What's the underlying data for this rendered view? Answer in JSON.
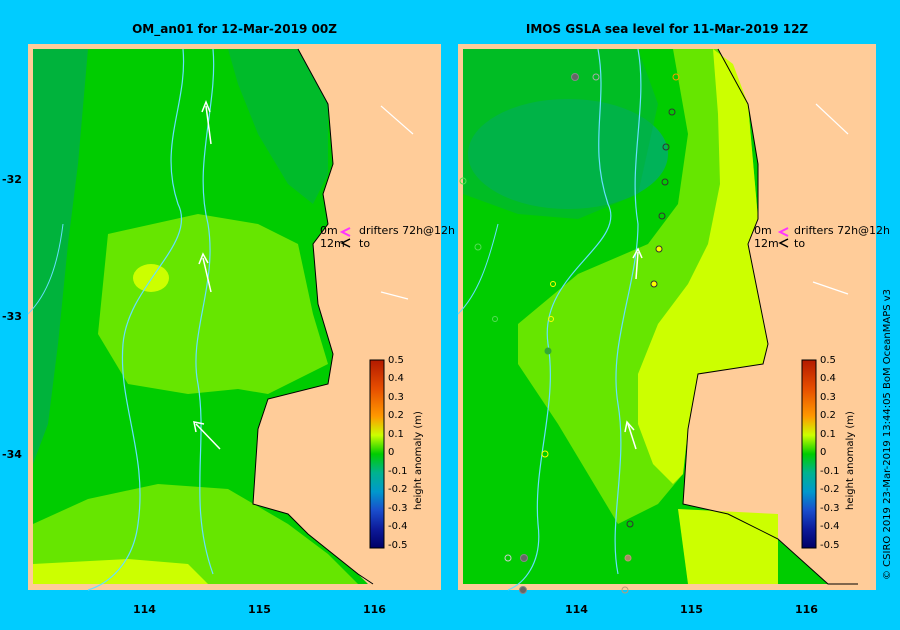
{
  "left_map": {
    "title": "OM_an01  for 12-Mar-2019 00Z",
    "drifters_label": "drifters 72h@12h",
    "depth_0": "0m",
    "depth_12": "12m",
    "to_label": "to"
  },
  "right_map": {
    "title": "IMOS GSLA sea level  for 11-Mar-2019 12Z",
    "drifters_label": "drifters 72h@12h",
    "depth_0": "0m",
    "depth_12": "12m",
    "to_label": "to"
  },
  "x_ticks": [
    "114",
    "115",
    "116"
  ],
  "y_ticks": [
    "-32",
    "-33",
    "-34"
  ],
  "colorbar": {
    "title": "height anomaly (m)",
    "labels": [
      "0.5",
      "0.4",
      "0.3",
      "0.2",
      "0.1",
      "0",
      "-0.1",
      "-0.2",
      "-0.3",
      "-0.4",
      "-0.5"
    ]
  },
  "credit": "© CSIRO 2019    23-Mar-2019 13:44:05 BoM OceanMAPS v3",
  "colors": {
    "background": "#00ccff",
    "land": "#ffcc99",
    "green_0": "#00cc00",
    "green_neg": "#00b33c",
    "lime_pos": "#66e600",
    "yellow_pos": "#ccff00",
    "bathymetry": "#66e0ff",
    "drifter_magenta": "#ff33ff"
  }
}
